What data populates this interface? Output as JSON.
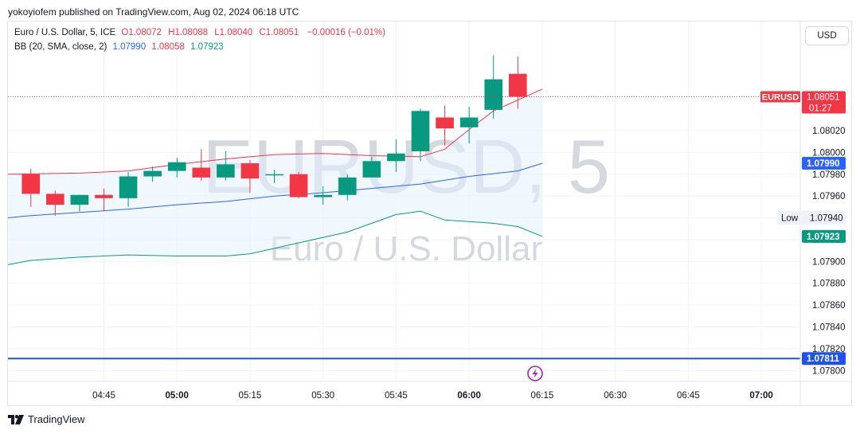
{
  "header": {
    "published_line": "yokoyiofem published on TradingView.com, Aug 02, 2024 06:18 UTC"
  },
  "legend": {
    "symbol_line": "Euro / U.S. Dollar, 5, ICE",
    "ohlc": [
      {
        "label": "O",
        "value": "1.08072"
      },
      {
        "label": "H",
        "value": "1.08088"
      },
      {
        "label": "L",
        "value": "1.08040"
      },
      {
        "label": "C",
        "value": "1.08051"
      }
    ],
    "change": "−0.00016 (−0.01%)",
    "bb_label": "BB (20, SMA, close, 2)",
    "bb_values": [
      "1.07990",
      "1.08058",
      "1.07923"
    ]
  },
  "currency_button": "USD",
  "watermark": {
    "symbol": "EURUSD, 5",
    "name": "Euro / U.S. Dollar"
  },
  "footer": {
    "brand": "TradingView"
  },
  "colors": {
    "up": "#089981",
    "down": "#f23645",
    "basis": "#2962ff",
    "upper": "#f23645",
    "lower": "#089981",
    "band_fill": "#e3f2fd",
    "hline": "#1e53e5"
  },
  "chart_data": {
    "type": "candlestick",
    "symbol": "EURUSD",
    "interval": "5",
    "ylim": [
      1.0779,
      1.0812
    ],
    "y_ticks": [
      "1.07800",
      "1.07820",
      "1.07840",
      "1.07860",
      "1.07880",
      "1.07900",
      "1.07920",
      "1.07940",
      "1.07960",
      "1.07980",
      "1.08000",
      "1.08020"
    ],
    "x_ticks": [
      {
        "label": "04:45",
        "t": 61
      },
      {
        "label": "05:00",
        "t": 64
      },
      {
        "label": "05:15",
        "t": 67
      },
      {
        "label": "05:30",
        "t": 70
      },
      {
        "label": "05:45",
        "t": 73
      },
      {
        "label": "06:00",
        "t": 76
      },
      {
        "label": "06:15",
        "t": 79
      },
      {
        "label": "06:30",
        "t": 82
      },
      {
        "label": "06:45",
        "t": 85
      },
      {
        "label": "07:00",
        "t": 88
      }
    ],
    "x_range": [
      57.06,
      89.6
    ],
    "candles": [
      {
        "time": "04:35",
        "o": 1.0798,
        "h": 1.07985,
        "l": 1.0795,
        "c": 1.07962
      },
      {
        "time": "04:40",
        "o": 1.07962,
        "h": 1.07965,
        "l": 1.07942,
        "c": 1.07952
      },
      {
        "time": "04:45",
        "o": 1.07952,
        "h": 1.07961,
        "l": 1.07946,
        "c": 1.07961
      },
      {
        "time": "04:50",
        "o": 1.07961,
        "h": 1.07967,
        "l": 1.07946,
        "c": 1.07958
      },
      {
        "time": "04:55",
        "o": 1.07958,
        "h": 1.07982,
        "l": 1.0795,
        "c": 1.07978
      },
      {
        "time": "05:00",
        "o": 1.07978,
        "h": 1.07987,
        "l": 1.07973,
        "c": 1.07983
      },
      {
        "time": "05:05",
        "o": 1.07983,
        "h": 1.07995,
        "l": 1.07977,
        "c": 1.07991
      },
      {
        "time": "05:10",
        "o": 1.07986,
        "h": 1.08003,
        "l": 1.07974,
        "c": 1.07977
      },
      {
        "time": "05:15",
        "o": 1.07977,
        "h": 1.08001,
        "l": 1.07974,
        "c": 1.07989
      },
      {
        "time": "05:20",
        "o": 1.0799,
        "h": 1.07993,
        "l": 1.07963,
        "c": 1.07976
      },
      {
        "time": "05:25",
        "o": 1.07979,
        "h": 1.07984,
        "l": 1.07972,
        "c": 1.0798
      },
      {
        "time": "05:30",
        "o": 1.0798,
        "h": 1.07982,
        "l": 1.07958,
        "c": 1.07959
      },
      {
        "time": "05:35",
        "o": 1.07959,
        "h": 1.07969,
        "l": 1.07952,
        "c": 1.07961
      },
      {
        "time": "05:40",
        "o": 1.07961,
        "h": 1.0798,
        "l": 1.07956,
        "c": 1.07977
      },
      {
        "time": "05:45",
        "o": 1.07977,
        "h": 1.07996,
        "l": 1.07977,
        "c": 1.07992
      },
      {
        "time": "05:50",
        "o": 1.07992,
        "h": 1.08012,
        "l": 1.07982,
        "c": 1.07999
      },
      {
        "time": "05:55",
        "o": 1.08001,
        "h": 1.0804,
        "l": 1.07992,
        "c": 1.08038
      },
      {
        "time": "06:00",
        "o": 1.08032,
        "h": 1.08043,
        "l": 1.08006,
        "c": 1.08022
      },
      {
        "time": "06:05",
        "o": 1.08023,
        "h": 1.08042,
        "l": 1.08008,
        "c": 1.08032
      },
      {
        "time": "06:10",
        "o": 1.08039,
        "h": 1.08089,
        "l": 1.08031,
        "c": 1.08067
      },
      {
        "time": "06:15",
        "o": 1.08072,
        "h": 1.08088,
        "l": 1.0804,
        "c": 1.08051
      }
    ],
    "bollinger": {
      "basis": [
        [
          57.06,
          1.0794
        ],
        [
          58,
          1.07942
        ],
        [
          60,
          1.07945
        ],
        [
          62,
          1.07948
        ],
        [
          64,
          1.07952
        ],
        [
          66,
          1.07955
        ],
        [
          68,
          1.0796
        ],
        [
          70,
          1.07963
        ],
        [
          72,
          1.07967
        ],
        [
          74,
          1.07971
        ],
        [
          76,
          1.07978
        ],
        [
          78,
          1.07983
        ],
        [
          79,
          1.0799
        ]
      ],
      "upper": [
        [
          57.06,
          1.0798
        ],
        [
          60,
          1.07981
        ],
        [
          62,
          1.07983
        ],
        [
          64,
          1.07989
        ],
        [
          66,
          1.07994
        ],
        [
          68,
          1.07998
        ],
        [
          70,
          1.07999
        ],
        [
          72,
          1.07997
        ],
        [
          74,
          1.07996
        ],
        [
          75,
          1.08003
        ],
        [
          76,
          1.08021
        ],
        [
          77,
          1.08038
        ],
        [
          78,
          1.08048
        ],
        [
          79,
          1.08058
        ]
      ],
      "lower": [
        [
          57.06,
          1.07897
        ],
        [
          58,
          1.07901
        ],
        [
          60,
          1.07904
        ],
        [
          62,
          1.07906
        ],
        [
          64,
          1.07905
        ],
        [
          66,
          1.07905
        ],
        [
          67,
          1.07907
        ],
        [
          69,
          1.07917
        ],
        [
          71,
          1.07927
        ],
        [
          73,
          1.07943
        ],
        [
          74,
          1.07946
        ],
        [
          75,
          1.07938
        ],
        [
          77,
          1.07935
        ],
        [
          78,
          1.07932
        ],
        [
          79,
          1.07923
        ]
      ]
    },
    "horizontal_line": 1.07811,
    "price_labels": [
      {
        "text": "EURUSD",
        "sub": "1.08051",
        "countdown": "01:27",
        "value": 1.08051,
        "kind": "symbol"
      },
      {
        "text": "1.07990",
        "value": 1.0799,
        "kind": "basis"
      },
      {
        "text": "1.07923",
        "value": 1.07923,
        "kind": "lower"
      },
      {
        "text": "1.07811",
        "value": 1.07811,
        "kind": "hline"
      }
    ],
    "low_label": {
      "text": "Low",
      "value": "1.07940"
    }
  }
}
